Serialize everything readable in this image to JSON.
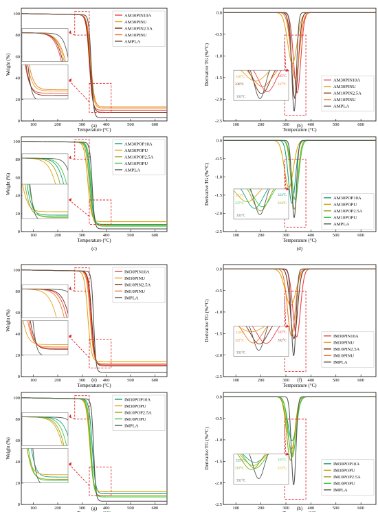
{
  "axes": {
    "temperature_label": "Temperature (°C)",
    "weight_label": "Weight (%)",
    "deriv_label": "Derivative TG (%/°C)"
  },
  "chart_data": [
    {
      "id": "a",
      "type": "line",
      "kind": "tg",
      "panel_label": "(a)",
      "xlabel": "Temperature (°C)",
      "ylabel": "Weight (%)",
      "xlim": [
        50,
        650
      ],
      "ylim": [
        0,
        105
      ],
      "xticks": [
        100,
        200,
        300,
        400,
        500,
        600
      ],
      "yticks": [
        0,
        20,
        40,
        60,
        80,
        100
      ],
      "series": [
        {
          "name": "AM30PIN10A",
          "color": "#ea4040",
          "onset": 318,
          "width": 20,
          "residue": 10
        },
        {
          "name": "AM30PINU",
          "color": "#e6a11c",
          "onset": 322,
          "width": 21,
          "residue": 12
        },
        {
          "name": "AM10PIN2.5A",
          "color": "#7a2a0c",
          "onset": 320,
          "width": 20,
          "residue": 8
        },
        {
          "name": "AM10PINU",
          "color": "#f07820",
          "onset": 324,
          "width": 22,
          "residue": 13
        },
        {
          "name": "AMPLA",
          "color": "#555555",
          "onset": 326,
          "width": 15,
          "residue": 3
        }
      ],
      "insets": []
    },
    {
      "id": "b",
      "type": "line",
      "kind": "dtg",
      "panel_label": "(b)",
      "xlabel": "Temperature (°C)",
      "ylabel": "Derivative TG (%/°C)",
      "xlim": [
        50,
        660
      ],
      "ylim": [
        -2.5,
        0.1
      ],
      "xticks": [
        100,
        200,
        300,
        400,
        500,
        600
      ],
      "yticks": [
        0,
        -0.5,
        -1.0,
        -1.5,
        -2.0,
        -2.5
      ],
      "series": [
        {
          "name": "AM30PIN10A",
          "color": "#ea4040",
          "peak": 345,
          "depth": -1.85,
          "width": 20
        },
        {
          "name": "AM30PINU",
          "color": "#e6a11c",
          "peak": 326,
          "depth": -1.18,
          "width": 26
        },
        {
          "name": "AM10PIN2.5A",
          "color": "#7a2a0c",
          "peak": 336,
          "depth": -1.98,
          "width": 19
        },
        {
          "name": "AM10PINU",
          "color": "#f07820",
          "peak": 337,
          "depth": -1.52,
          "width": 24
        },
        {
          "name": "AMPLA",
          "color": "#555555",
          "peak": 333,
          "depth": -2.28,
          "width": 13
        }
      ],
      "insets": [
        {
          "text": "326°C",
          "color": "#e6a11c"
        },
        {
          "text": "345°C",
          "color": "#ea4040"
        },
        {
          "text": "336°C",
          "color": "#7a2a0c"
        },
        {
          "text": "337°C",
          "color": "#f07820"
        },
        {
          "text": "333°C",
          "color": "#555555"
        }
      ]
    },
    {
      "id": "c",
      "type": "line",
      "kind": "tg",
      "panel_label": "(c)",
      "xlabel": "Temperature (°C)",
      "ylabel": "Weight (%)",
      "xlim": [
        50,
        650
      ],
      "ylim": [
        0,
        105
      ],
      "xticks": [
        100,
        200,
        300,
        400,
        500,
        600
      ],
      "yticks": [
        0,
        20,
        40,
        60,
        80,
        100
      ],
      "series": [
        {
          "name": "AM30POP10A",
          "color": "#15a07a",
          "onset": 322,
          "width": 20,
          "residue": 8
        },
        {
          "name": "AM30POPU",
          "color": "#d8a50a",
          "onset": 312,
          "width": 22,
          "residue": 11
        },
        {
          "name": "AM10POP2.5A",
          "color": "#9aa012",
          "onset": 318,
          "width": 21,
          "residue": 7
        },
        {
          "name": "AM10POPU",
          "color": "#3ccc3c",
          "onset": 326,
          "width": 20,
          "residue": 6
        },
        {
          "name": "AMPLA",
          "color": "#555555",
          "onset": 330,
          "width": 15,
          "residue": 3
        }
      ],
      "insets": []
    },
    {
      "id": "d",
      "type": "line",
      "kind": "dtg",
      "panel_label": "(d)",
      "xlabel": "Temperature (°C)",
      "ylabel": "Derivative TG (%/°C)",
      "xlim": [
        50,
        660
      ],
      "ylim": [
        -2.5,
        0.1
      ],
      "xticks": [
        100,
        200,
        300,
        400,
        500,
        600
      ],
      "yticks": [
        0,
        -0.5,
        -1.0,
        -1.5,
        -2.0,
        -2.5
      ],
      "series": [
        {
          "name": "AM30POP10A",
          "color": "#15a07a",
          "peak": 324,
          "depth": -1.72,
          "width": 20
        },
        {
          "name": "AM30POPU",
          "color": "#d8a50a",
          "peak": 312,
          "depth": -1.3,
          "width": 25
        },
        {
          "name": "AM10POP2.5A",
          "color": "#9aa012",
          "peak": 334,
          "depth": -1.88,
          "width": 19
        },
        {
          "name": "AM10POPU",
          "color": "#3ccc3c",
          "peak": 337,
          "depth": -1.62,
          "width": 20
        },
        {
          "name": "AMPLA",
          "color": "#555555",
          "peak": 333,
          "depth": -2.12,
          "width": 13
        }
      ],
      "insets": [
        {
          "text": "312°C",
          "color": "#d8a50a"
        },
        {
          "text": "324°C",
          "color": "#15a07a"
        },
        {
          "text": "337°C",
          "color": "#3ccc3c"
        },
        {
          "text": "334°C",
          "color": "#9aa012"
        },
        {
          "text": "333°C",
          "color": "#555555"
        }
      ]
    },
    {
      "id": "e",
      "type": "line",
      "kind": "tg",
      "panel_label": "(e)",
      "xlabel": "Temperature (°C)",
      "ylabel": "Weight (%)",
      "xlim": [
        50,
        650
      ],
      "ylim": [
        0,
        105
      ],
      "xticks": [
        100,
        200,
        300,
        400,
        500,
        600
      ],
      "yticks": [
        0,
        20,
        40,
        60,
        80,
        100
      ],
      "series": [
        {
          "name": "IM30PIN10A",
          "color": "#ea4040",
          "onset": 325,
          "width": 20,
          "residue": 11
        },
        {
          "name": "IM30PINU",
          "color": "#e6a11c",
          "onset": 312,
          "width": 22,
          "residue": 14
        },
        {
          "name": "IM10PIN2.5A",
          "color": "#7a2a0c",
          "onset": 328,
          "width": 20,
          "residue": 10
        },
        {
          "name": "IM10PINU",
          "color": "#f07820",
          "onset": 322,
          "width": 21,
          "residue": 12
        },
        {
          "name": "IMPLA",
          "color": "#555555",
          "onset": 336,
          "width": 14,
          "residue": 4
        }
      ],
      "insets": []
    },
    {
      "id": "f",
      "type": "line",
      "kind": "dtg",
      "panel_label": "(f)",
      "xlabel": "Temperature (°C)",
      "ylabel": "Derivative TG (%/°C)",
      "xlim": [
        50,
        660
      ],
      "ylim": [
        -2.5,
        0.1
      ],
      "xticks": [
        100,
        200,
        300,
        400,
        500,
        600
      ],
      "yticks": [
        0,
        -0.5,
        -1.0,
        -1.5,
        -2.0,
        -2.5
      ],
      "series": [
        {
          "name": "IM30PIN10A",
          "color": "#ea4040",
          "peak": 343,
          "depth": -1.58,
          "width": 21
        },
        {
          "name": "IM30PINU",
          "color": "#e6a11c",
          "peak": 319,
          "depth": -0.85,
          "width": 30
        },
        {
          "name": "IM10PIN2.5A",
          "color": "#7a2a0c",
          "peak": 332,
          "depth": -1.62,
          "width": 20
        },
        {
          "name": "IM10PINU",
          "color": "#f07820",
          "peak": 322,
          "depth": -1.55,
          "width": 22
        },
        {
          "name": "IMPLA",
          "color": "#555555",
          "peak": 331,
          "depth": -2.02,
          "width": 13
        }
      ],
      "insets": [
        {
          "text": "319°C",
          "color": "#e6a11c"
        },
        {
          "text": "343°C",
          "color": "#ea4040"
        },
        {
          "text": "322°C",
          "color": "#f07820"
        },
        {
          "text": "332°C",
          "color": "#7a2a0c"
        },
        {
          "text": "331°C",
          "color": "#555555"
        }
      ]
    },
    {
      "id": "g",
      "type": "line",
      "kind": "tg",
      "panel_label": "(g)",
      "xlabel": "Temperature (°C)",
      "ylabel": "Weight (%)",
      "xlim": [
        50,
        650
      ],
      "ylim": [
        0,
        105
      ],
      "xticks": [
        100,
        200,
        300,
        400,
        500,
        600
      ],
      "yticks": [
        0,
        20,
        40,
        60,
        80,
        100
      ],
      "series": [
        {
          "name": "IM30POP10A",
          "color": "#15a07a",
          "onset": 330,
          "width": 20,
          "residue": 10
        },
        {
          "name": "IM30POPU",
          "color": "#d8a50a",
          "onset": 320,
          "width": 22,
          "residue": 12
        },
        {
          "name": "IM10POP2.5A",
          "color": "#9aa012",
          "onset": 322,
          "width": 21,
          "residue": 8
        },
        {
          "name": "IM10POPU",
          "color": "#3ccc3c",
          "onset": 325,
          "width": 20,
          "residue": 7
        },
        {
          "name": "IMPLA",
          "color": "#555555",
          "onset": 336,
          "width": 14,
          "residue": 3
        }
      ],
      "insets": []
    },
    {
      "id": "h",
      "type": "line",
      "kind": "dtg",
      "panel_label": "(h)",
      "xlabel": "Temperature (°C)",
      "ylabel": "Derivative TG (%/°C)",
      "xlim": [
        50,
        660
      ],
      "ylim": [
        -2.5,
        0.1
      ],
      "xticks": [
        100,
        200,
        300,
        400,
        500,
        600
      ],
      "yticks": [
        0,
        -0.5,
        -1.0,
        -1.5,
        -2.0,
        -2.5
      ],
      "series": [
        {
          "name": "IM30POP10A",
          "color": "#15a07a",
          "peak": 325,
          "depth": -1.02,
          "width": 24
        },
        {
          "name": "IM30POPU",
          "color": "#d8a50a",
          "peak": 322,
          "depth": -1.22,
          "width": 24
        },
        {
          "name": "IM10POP2.5A",
          "color": "#9aa012",
          "peak": 319,
          "depth": -1.48,
          "width": 22
        },
        {
          "name": "IM10POPU",
          "color": "#3ccc3c",
          "peak": 325,
          "depth": -1.4,
          "width": 22
        },
        {
          "name": "IMPLA",
          "color": "#555555",
          "peak": 331,
          "depth": -2.05,
          "width": 13
        }
      ],
      "insets": [
        {
          "text": "325°C",
          "color": "#15a07a"
        },
        {
          "text": "325°C",
          "color": "#3ccc3c"
        },
        {
          "text": "319°C",
          "color": "#9aa012"
        },
        {
          "text": "322°C",
          "color": "#d8a50a"
        },
        {
          "text": "331°C",
          "color": "#555555"
        }
      ]
    }
  ]
}
